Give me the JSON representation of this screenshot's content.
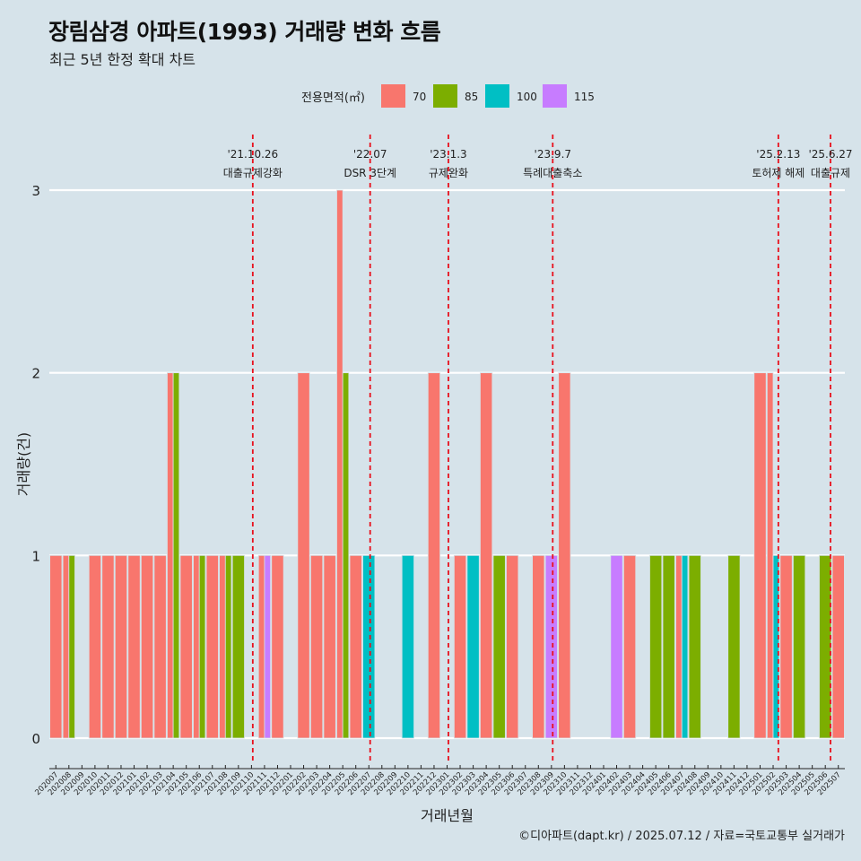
{
  "title": "장림삼경 아파트(1993) 거래량 변화 흐름",
  "subtitle": "최근 5년 한정 확대 차트",
  "caption": "©디아파트(dapt.kr) / 2025.07.12 / 자료=국토교통부 실거래가",
  "colors": {
    "background": "#d6e3ea",
    "70": "#f8766d",
    "85": "#7cae00",
    "100": "#00bfc4",
    "115": "#c77cff",
    "event_line": "#e8101c"
  },
  "chart_data": {
    "type": "bar",
    "xlabel": "거래년월",
    "ylabel": "거래량(건)",
    "ylim": [
      0,
      3
    ],
    "yticks": [
      0,
      1,
      2,
      3
    ],
    "grid": true,
    "legend": {
      "title": "전용면적(㎡)",
      "position": "top"
    },
    "categories": [
      "202007",
      "202008",
      "202009",
      "202010",
      "202011",
      "202012",
      "202101",
      "202102",
      "202103",
      "202104",
      "202105",
      "202106",
      "202107",
      "202108",
      "202109",
      "202110",
      "202111",
      "202112",
      "202201",
      "202202",
      "202203",
      "202204",
      "202205",
      "202206",
      "202207",
      "202208",
      "202209",
      "202210",
      "202211",
      "202212",
      "202301",
      "202302",
      "202303",
      "202304",
      "202305",
      "202306",
      "202307",
      "202308",
      "202309",
      "202310",
      "202311",
      "202312",
      "202401",
      "202402",
      "202403",
      "202404",
      "202405",
      "202406",
      "202407",
      "202408",
      "202409",
      "202410",
      "202411",
      "202412",
      "202501",
      "202502",
      "202503",
      "202504",
      "202505",
      "202506",
      "202507"
    ],
    "series": [
      {
        "name": "70",
        "values": [
          1,
          1,
          0,
          1,
          1,
          1,
          1,
          1,
          1,
          2,
          1,
          1,
          1,
          1,
          0,
          0,
          1,
          1,
          0,
          2,
          1,
          1,
          3,
          1,
          0,
          0,
          0,
          0,
          0,
          2,
          0,
          1,
          0,
          2,
          0,
          1,
          0,
          1,
          0,
          2,
          0,
          0,
          0,
          0,
          1,
          0,
          0,
          0,
          1,
          0,
          0,
          0,
          0,
          0,
          2,
          2,
          1,
          0,
          0,
          0,
          1
        ]
      },
      {
        "name": "85",
        "values": [
          0,
          1,
          0,
          0,
          0,
          0,
          0,
          0,
          0,
          2,
          0,
          1,
          0,
          1,
          1,
          0,
          0,
          0,
          0,
          0,
          0,
          0,
          2,
          0,
          0,
          0,
          0,
          0,
          0,
          0,
          0,
          0,
          0,
          0,
          1,
          0,
          0,
          0,
          0,
          0,
          0,
          0,
          0,
          0,
          0,
          0,
          1,
          1,
          0,
          1,
          0,
          0,
          1,
          0,
          0,
          0,
          0,
          1,
          0,
          1,
          0
        ]
      },
      {
        "name": "100",
        "values": [
          0,
          0,
          0,
          0,
          0,
          0,
          0,
          0,
          0,
          0,
          0,
          0,
          0,
          0,
          0,
          0,
          0,
          0,
          0,
          0,
          0,
          0,
          0,
          0,
          1,
          0,
          0,
          1,
          0,
          0,
          0,
          0,
          1,
          0,
          0,
          0,
          0,
          0,
          0,
          0,
          0,
          0,
          0,
          0,
          0,
          0,
          0,
          0,
          1,
          0,
          0,
          0,
          0,
          0,
          0,
          1,
          0,
          0,
          0,
          0,
          0
        ]
      },
      {
        "name": "115",
        "values": [
          0,
          0,
          0,
          0,
          0,
          0,
          0,
          0,
          0,
          0,
          0,
          0,
          0,
          0,
          0,
          0,
          1,
          0,
          0,
          0,
          0,
          0,
          0,
          0,
          0,
          0,
          0,
          0,
          0,
          0,
          0,
          0,
          0,
          0,
          0,
          0,
          0,
          0,
          1,
          0,
          0,
          0,
          0,
          1,
          0,
          0,
          0,
          0,
          0,
          0,
          0,
          0,
          0,
          0,
          0,
          0,
          0,
          0,
          0,
          0,
          0
        ]
      }
    ],
    "events": [
      {
        "date": "'21.10.26",
        "label": "대출규제강화",
        "x": 15.6
      },
      {
        "date": "'22.07",
        "label": "DSR 3단계",
        "x": 24.6
      },
      {
        "date": "'23.1.3",
        "label": "규제완화",
        "x": 30.6
      },
      {
        "date": "'23.9.7",
        "label": "특례대출축소",
        "x": 38.6
      },
      {
        "date": "'25.2.13",
        "label": "토허제 해제",
        "x": 55.9
      },
      {
        "date": "'25.6.27",
        "label": "대출규제",
        "x": 59.9
      }
    ]
  }
}
